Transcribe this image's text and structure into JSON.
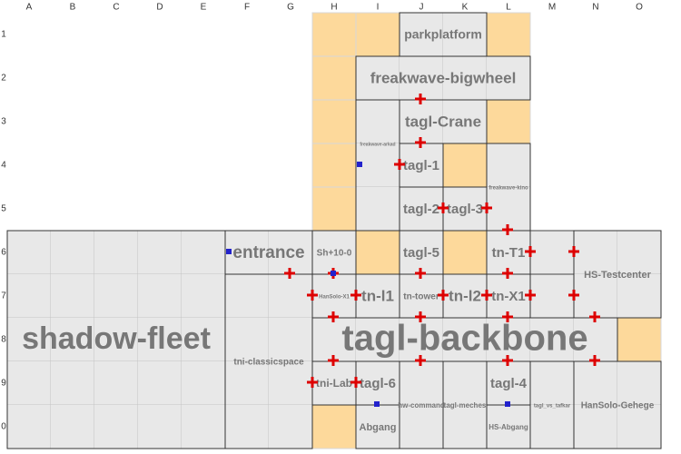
{
  "columns": [
    "A",
    "B",
    "C",
    "D",
    "E",
    "F",
    "G",
    "H",
    "I",
    "J",
    "K",
    "L",
    "M",
    "N",
    "O"
  ],
  "rows": [
    "1",
    "2",
    "3",
    "4",
    "5",
    "6",
    "7",
    "8",
    "9",
    "0"
  ],
  "rooms": [
    {
      "label": "parkplatform"
    },
    {
      "label": "freakwave-bigwheel"
    },
    {
      "label": "tagl-Crane"
    },
    {
      "label": "freakwave-arkad"
    },
    {
      "label": "tagl-1"
    },
    {
      "label": "freakwave-kino"
    },
    {
      "label": "tagl-2"
    },
    {
      "label": "tagl-3"
    },
    {
      "label": "shadow-fleet"
    },
    {
      "label": "entrance"
    },
    {
      "label": "tni-classicspace"
    },
    {
      "label": "Sh+10-0"
    },
    {
      "label": "tagl-5"
    },
    {
      "label": "tn-T1"
    },
    {
      "label": "HS-Testcenter"
    },
    {
      "label": "HanSolo-X1"
    },
    {
      "label": "tn-l1"
    },
    {
      "label": "tn-tower"
    },
    {
      "label": "tn-l2"
    },
    {
      "label": "tn-X1"
    },
    {
      "label": "tagl-backbone"
    },
    {
      "label": "tni-Lab"
    },
    {
      "label": "tagl-6"
    },
    {
      "label": "hw-command"
    },
    {
      "label": "tagl-meches"
    },
    {
      "label": "tagl-4"
    },
    {
      "label": "HS-Abgang"
    },
    {
      "label": "tagl_vs_tafkar"
    },
    {
      "label": "HanSolo-Gehege"
    },
    {
      "label": "Abgang"
    }
  ]
}
